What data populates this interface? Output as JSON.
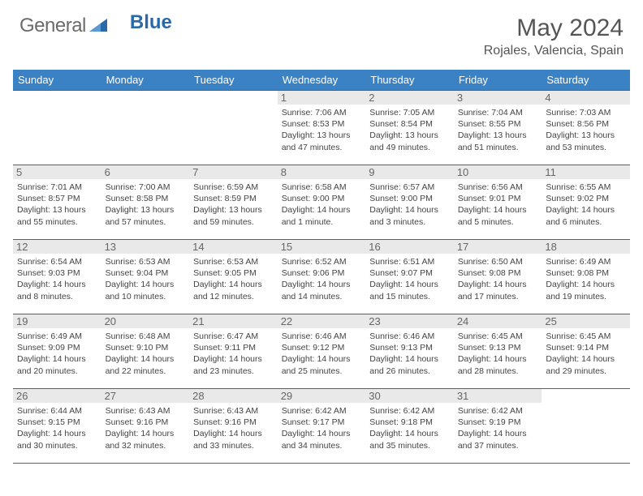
{
  "logo": {
    "text1": "General",
    "text2": "Blue"
  },
  "title": "May 2024",
  "location": "Rojales, Valencia, Spain",
  "colors": {
    "header_bg": "#3b82c4",
    "border": "#2b6aa8",
    "daynum_bg": "#e9e9e9",
    "text": "#444444",
    "logo_blue": "#2b6aa8"
  },
  "fonts": {
    "title_size": 30,
    "location_size": 16,
    "header_size": 13,
    "cell_size": 10.5
  },
  "dayHeaders": [
    "Sunday",
    "Monday",
    "Tuesday",
    "Wednesday",
    "Thursday",
    "Friday",
    "Saturday"
  ],
  "weeks": [
    [
      null,
      null,
      null,
      {
        "n": "1",
        "sunrise": "7:06 AM",
        "sunset": "8:53 PM",
        "daylight": "13 hours and 47 minutes."
      },
      {
        "n": "2",
        "sunrise": "7:05 AM",
        "sunset": "8:54 PM",
        "daylight": "13 hours and 49 minutes."
      },
      {
        "n": "3",
        "sunrise": "7:04 AM",
        "sunset": "8:55 PM",
        "daylight": "13 hours and 51 minutes."
      },
      {
        "n": "4",
        "sunrise": "7:03 AM",
        "sunset": "8:56 PM",
        "daylight": "13 hours and 53 minutes."
      }
    ],
    [
      {
        "n": "5",
        "sunrise": "7:01 AM",
        "sunset": "8:57 PM",
        "daylight": "13 hours and 55 minutes."
      },
      {
        "n": "6",
        "sunrise": "7:00 AM",
        "sunset": "8:58 PM",
        "daylight": "13 hours and 57 minutes."
      },
      {
        "n": "7",
        "sunrise": "6:59 AM",
        "sunset": "8:59 PM",
        "daylight": "13 hours and 59 minutes."
      },
      {
        "n": "8",
        "sunrise": "6:58 AM",
        "sunset": "9:00 PM",
        "daylight": "14 hours and 1 minute."
      },
      {
        "n": "9",
        "sunrise": "6:57 AM",
        "sunset": "9:00 PM",
        "daylight": "14 hours and 3 minutes."
      },
      {
        "n": "10",
        "sunrise": "6:56 AM",
        "sunset": "9:01 PM",
        "daylight": "14 hours and 5 minutes."
      },
      {
        "n": "11",
        "sunrise": "6:55 AM",
        "sunset": "9:02 PM",
        "daylight": "14 hours and 6 minutes."
      }
    ],
    [
      {
        "n": "12",
        "sunrise": "6:54 AM",
        "sunset": "9:03 PM",
        "daylight": "14 hours and 8 minutes."
      },
      {
        "n": "13",
        "sunrise": "6:53 AM",
        "sunset": "9:04 PM",
        "daylight": "14 hours and 10 minutes."
      },
      {
        "n": "14",
        "sunrise": "6:53 AM",
        "sunset": "9:05 PM",
        "daylight": "14 hours and 12 minutes."
      },
      {
        "n": "15",
        "sunrise": "6:52 AM",
        "sunset": "9:06 PM",
        "daylight": "14 hours and 14 minutes."
      },
      {
        "n": "16",
        "sunrise": "6:51 AM",
        "sunset": "9:07 PM",
        "daylight": "14 hours and 15 minutes."
      },
      {
        "n": "17",
        "sunrise": "6:50 AM",
        "sunset": "9:08 PM",
        "daylight": "14 hours and 17 minutes."
      },
      {
        "n": "18",
        "sunrise": "6:49 AM",
        "sunset": "9:08 PM",
        "daylight": "14 hours and 19 minutes."
      }
    ],
    [
      {
        "n": "19",
        "sunrise": "6:49 AM",
        "sunset": "9:09 PM",
        "daylight": "14 hours and 20 minutes."
      },
      {
        "n": "20",
        "sunrise": "6:48 AM",
        "sunset": "9:10 PM",
        "daylight": "14 hours and 22 minutes."
      },
      {
        "n": "21",
        "sunrise": "6:47 AM",
        "sunset": "9:11 PM",
        "daylight": "14 hours and 23 minutes."
      },
      {
        "n": "22",
        "sunrise": "6:46 AM",
        "sunset": "9:12 PM",
        "daylight": "14 hours and 25 minutes."
      },
      {
        "n": "23",
        "sunrise": "6:46 AM",
        "sunset": "9:13 PM",
        "daylight": "14 hours and 26 minutes."
      },
      {
        "n": "24",
        "sunrise": "6:45 AM",
        "sunset": "9:13 PM",
        "daylight": "14 hours and 28 minutes."
      },
      {
        "n": "25",
        "sunrise": "6:45 AM",
        "sunset": "9:14 PM",
        "daylight": "14 hours and 29 minutes."
      }
    ],
    [
      {
        "n": "26",
        "sunrise": "6:44 AM",
        "sunset": "9:15 PM",
        "daylight": "14 hours and 30 minutes."
      },
      {
        "n": "27",
        "sunrise": "6:43 AM",
        "sunset": "9:16 PM",
        "daylight": "14 hours and 32 minutes."
      },
      {
        "n": "28",
        "sunrise": "6:43 AM",
        "sunset": "9:16 PM",
        "daylight": "14 hours and 33 minutes."
      },
      {
        "n": "29",
        "sunrise": "6:42 AM",
        "sunset": "9:17 PM",
        "daylight": "14 hours and 34 minutes."
      },
      {
        "n": "30",
        "sunrise": "6:42 AM",
        "sunset": "9:18 PM",
        "daylight": "14 hours and 35 minutes."
      },
      {
        "n": "31",
        "sunrise": "6:42 AM",
        "sunset": "9:19 PM",
        "daylight": "14 hours and 37 minutes."
      },
      null
    ]
  ],
  "labels": {
    "sunrise": "Sunrise:",
    "sunset": "Sunset:",
    "daylight": "Daylight:"
  }
}
